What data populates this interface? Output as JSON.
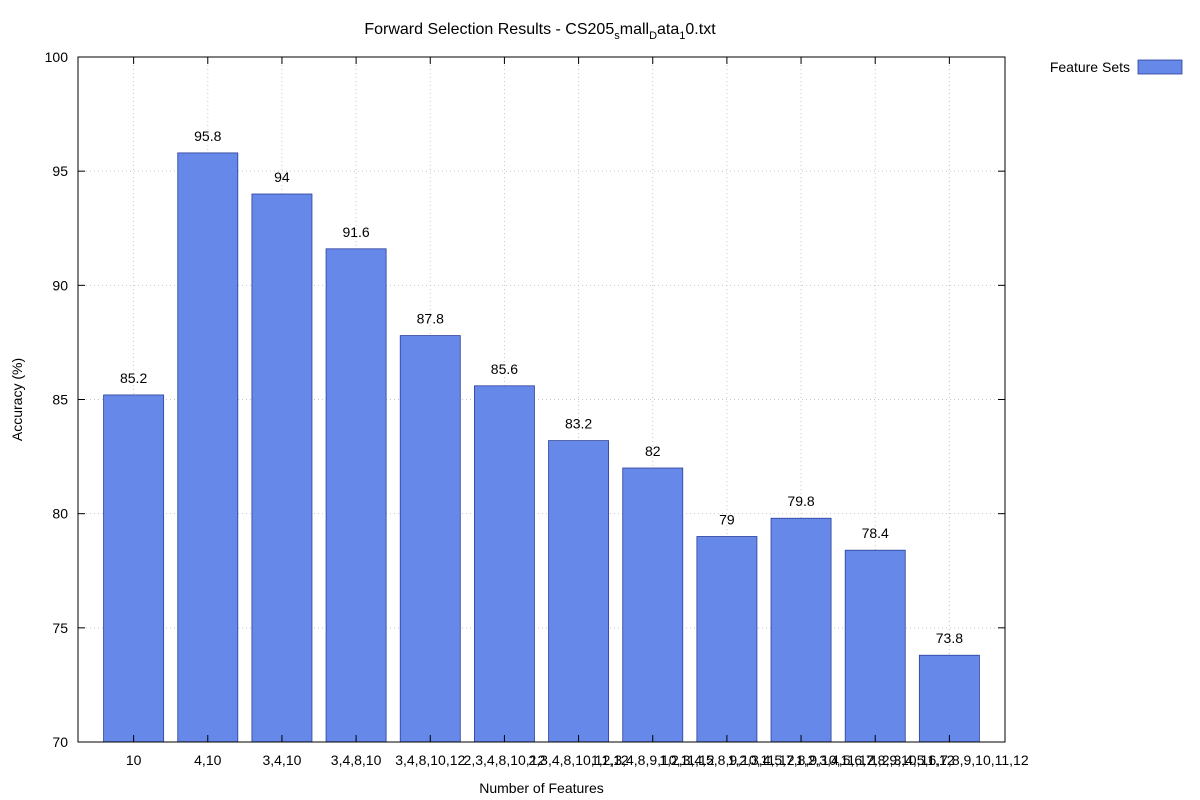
{
  "chart_data": {
    "type": "bar",
    "title": "Forward Selection Results - CS205",
    "title_parts": [
      {
        "text": "Forward Selection Results - CS205",
        "sub": false
      },
      {
        "text": "s",
        "sub": true
      },
      {
        "text": "mall",
        "sub": false
      },
      {
        "text": "D",
        "sub": true
      },
      {
        "text": "ata",
        "sub": false
      },
      {
        "text": "1",
        "sub": true
      },
      {
        "text": "0.txt",
        "sub": false
      }
    ],
    "xlabel": "Number of Features",
    "ylabel": "Accuracy (%)",
    "ylim": [
      70,
      100
    ],
    "yticks": [
      "70",
      "75",
      "80",
      "85",
      "90",
      "95",
      "100"
    ],
    "categories": [
      "10",
      "4,10",
      "3,4,10",
      "3,4,8,10",
      "3,4,8,10,12",
      "2,3,4,8,10,12",
      "2,3,4,8,10,11,12",
      "1,2,3,4,8,9,10,11,12",
      "1,2,3,4,5,8,9,10,11,12",
      "1,2,3,4,5,7,8,9,10,11,12",
      "1,2,3,4,5,6,7,8,9,10,11,12",
      "1,2,3,4,5,6,7,8,9,10,11,12"
    ],
    "series": [
      {
        "name": "Feature Sets",
        "color": "#6688e8",
        "values": [
          85.2,
          95.8,
          94,
          91.6,
          87.8,
          85.6,
          83.2,
          82,
          79,
          79.8,
          78.4,
          73.8
        ]
      }
    ],
    "data_labels": [
      "85.2",
      "95.8",
      "94",
      "91.6",
      "87.8",
      "85.6",
      "83.2",
      "82",
      "79",
      "79.8",
      "78.4",
      "73.8"
    ],
    "grid": true,
    "legend_position": "outside-top-right"
  }
}
